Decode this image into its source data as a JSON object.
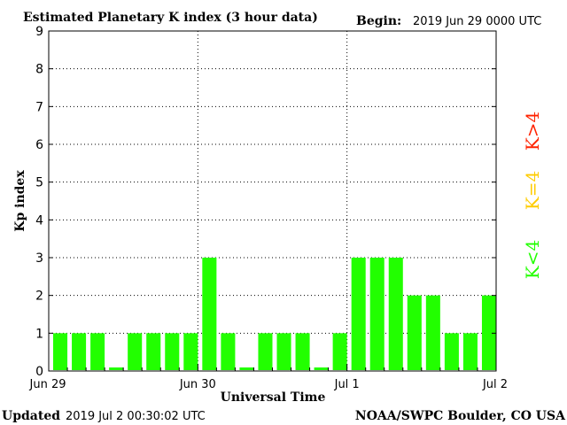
{
  "chart_data": {
    "type": "bar",
    "title": "Estimated Planetary K index (3 hour data)",
    "begin_label": "Begin:",
    "begin_value": "2019 Jun 29 0000 UTC",
    "xlabel": "Universal Time",
    "ylabel": "Kp index",
    "ylim": [
      0,
      9
    ],
    "yticks": [
      "0",
      "1",
      "2",
      "3",
      "4",
      "5",
      "6",
      "7",
      "8",
      "9"
    ],
    "x_day_labels": [
      "Jun 29",
      "Jun 30",
      "Jul 1",
      "Jul 2"
    ],
    "bars_per_day": 8,
    "values": [
      1,
      1,
      1,
      0,
      1,
      1,
      1,
      1,
      3,
      1,
      0,
      1,
      1,
      1,
      0,
      1,
      3,
      3,
      3,
      2,
      2,
      1,
      1,
      2
    ],
    "bar_color": "#22ff00",
    "grid": "dotted",
    "legend": {
      "above": {
        "text": "K>4",
        "color": "#ff2200"
      },
      "equal": {
        "text": "K=4",
        "color": "#ffcc00"
      },
      "below": {
        "text": "K<4",
        "color": "#22ff00"
      }
    }
  },
  "footer": {
    "updated_label": "Updated",
    "updated_value": "2019 Jul  2 00:30:02 UTC",
    "source": "NOAA/SWPC Boulder, CO USA"
  }
}
